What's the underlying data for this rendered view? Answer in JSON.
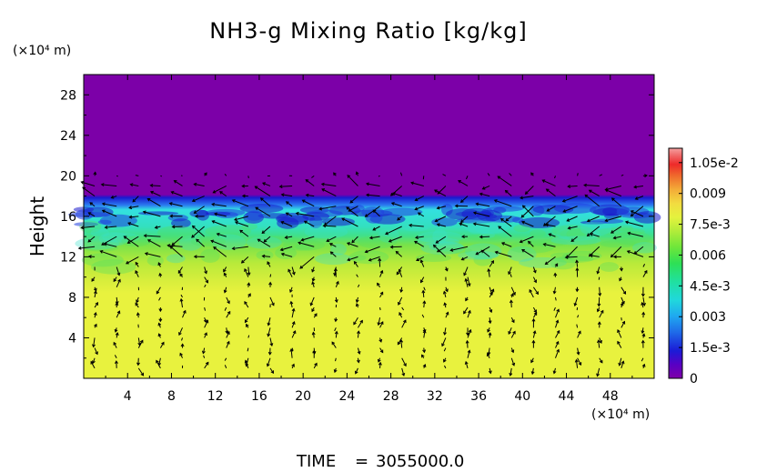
{
  "chart_data": {
    "type": "heatmap",
    "title": "NH3-g Mixing Ratio [kg/kg]",
    "ylabel": "Height",
    "y_unit_label": "(×10⁴ m)",
    "x_unit_label": "(×10⁴ m)",
    "xlim": [
      0,
      52
    ],
    "ylim": [
      0,
      30
    ],
    "x_ticks": [
      "4",
      "8",
      "12",
      "16",
      "20",
      "24",
      "28",
      "32",
      "36",
      "40",
      "44",
      "48"
    ],
    "y_ticks": [
      "4",
      "8",
      "12",
      "16",
      "20",
      "24",
      "28"
    ],
    "colorbar": {
      "min": 0,
      "max": 0.0112,
      "ticks": [
        {
          "value": 0,
          "label": "0"
        },
        {
          "value": 0.0015,
          "label": "1.5e-3"
        },
        {
          "value": 0.003,
          "label": "0.003"
        },
        {
          "value": 0.0045,
          "label": "4.5e-3"
        },
        {
          "value": 0.006,
          "label": "0.006"
        },
        {
          "value": 0.0075,
          "label": "7.5e-3"
        },
        {
          "value": 0.009,
          "label": "0.009"
        },
        {
          "value": 0.0105,
          "label": "1.05e-2"
        }
      ],
      "colors": [
        "#7f00a8",
        "#5a00c8",
        "#1b1bd6",
        "#1f5fe8",
        "#1f9cf0",
        "#20d2e0",
        "#20e0a0",
        "#2ee055",
        "#5ee63a",
        "#a6ec3a",
        "#d2f03a",
        "#e6f23e",
        "#f0e040",
        "#f3b83a",
        "#f08a30",
        "#ee4a2a",
        "#ee2a2a",
        "#f06a6a",
        "#f4a0a0"
      ]
    },
    "field_layers": [
      {
        "from_height": 16.8,
        "to_height": 30,
        "value": 0
      },
      {
        "from_height": 15.2,
        "to_height": 16.8,
        "value": 0.0015
      },
      {
        "from_height": 13.5,
        "to_height": 15.2,
        "value": 0.0045
      },
      {
        "from_height": 10.5,
        "to_height": 13.5,
        "value": 0.0068
      },
      {
        "from_height": 0,
        "to_height": 10.5,
        "value": 0.0082
      }
    ],
    "vectors": "wind arrows overlaid across the domain; strongest near heights 12–20"
  },
  "footer": {
    "time_label": "TIME",
    "time_eq": "=",
    "time_value": "3055000.0"
  }
}
